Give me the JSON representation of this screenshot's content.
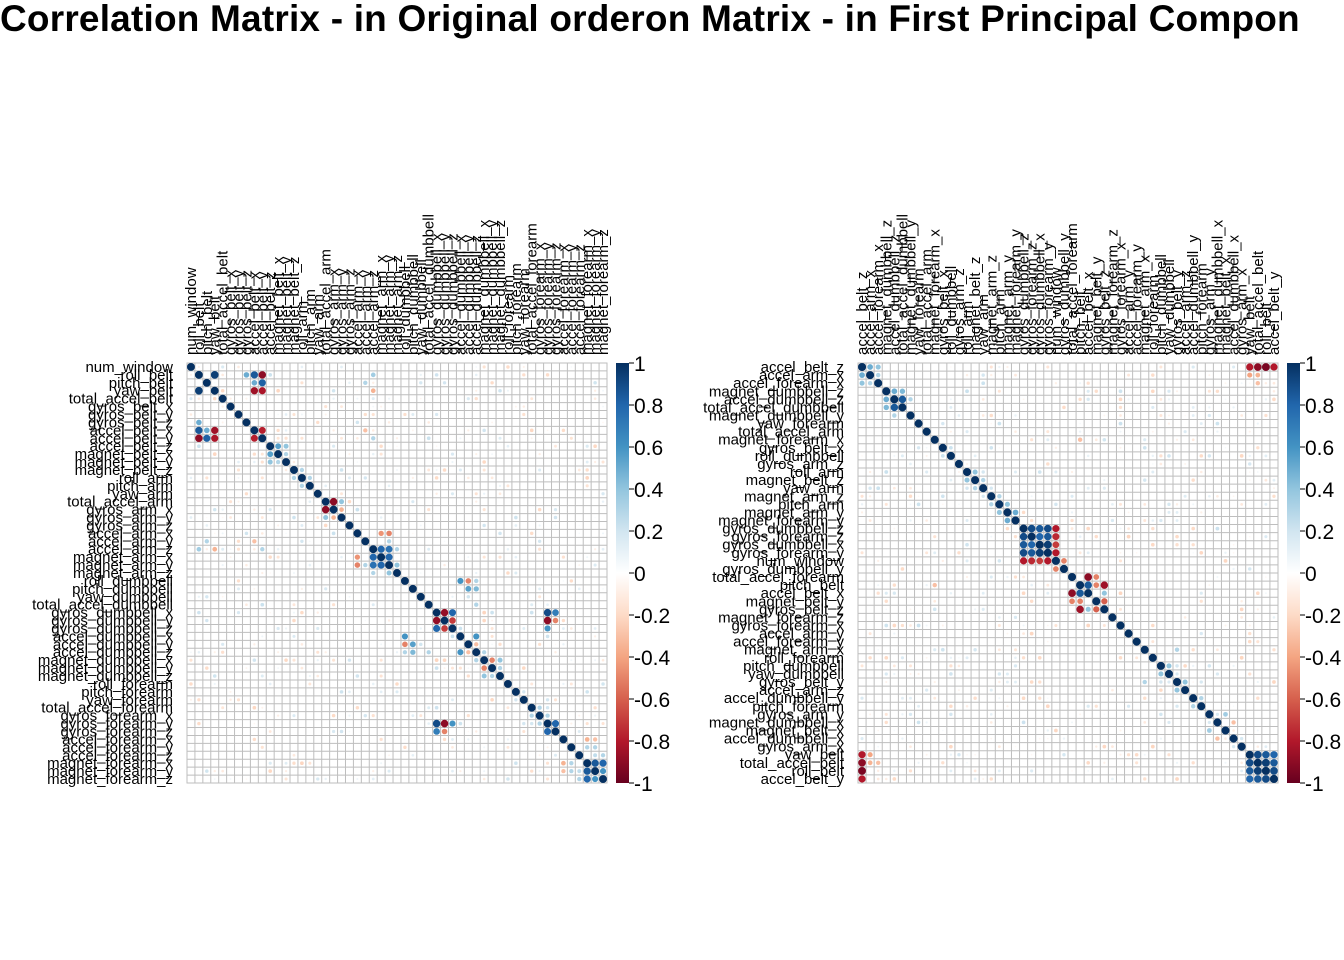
{
  "title": "Correlation Matrix - in Original orderon Matrix - in First Principal Compon",
  "colorbar_ticks": [
    "1",
    "0.8",
    "0.6",
    "0.4",
    "0.2",
    "0",
    "-0.2",
    "-0.4",
    "-0.6",
    "-0.8",
    "-1"
  ],
  "colors": {
    "positive": "#053061",
    "neutral": "#ffffff",
    "negative": "#67001f",
    "grid": "#bebebe"
  },
  "chart_data": [
    {
      "type": "heatmap",
      "title": "Correlation Matrix - in Original order",
      "range": [
        -1,
        1
      ],
      "legend": "right",
      "variables": [
        "num_window",
        "roll_belt",
        "pitch_belt",
        "yaw_belt",
        "total_accel_belt",
        "gyros_belt_x",
        "gyros_belt_y",
        "gyros_belt_z",
        "accel_belt_x",
        "accel_belt_y",
        "accel_belt_z",
        "magnet_belt_x",
        "magnet_belt_y",
        "magnet_belt_z",
        "roll_arm",
        "pitch_arm",
        "yaw_arm",
        "total_accel_arm",
        "gyros_arm_x",
        "gyros_arm_y",
        "gyros_arm_z",
        "accel_arm_x",
        "accel_arm_y",
        "accel_arm_z",
        "magnet_arm_x",
        "magnet_arm_y",
        "magnet_arm_z",
        "roll_dumbbell",
        "pitch_dumbbell",
        "yaw_dumbbell",
        "total_accel_dumbbell",
        "gyros_dumbbell_x",
        "gyros_dumbbell_y",
        "gyros_dumbbell_z",
        "accel_dumbbell_x",
        "accel_dumbbell_y",
        "accel_dumbbell_z",
        "magnet_dumbbell_x",
        "magnet_dumbbell_y",
        "magnet_dumbbell_z",
        "roll_forearm",
        "pitch_forearm",
        "yaw_forearm",
        "total_accel_forearm",
        "gyros_forearm_x",
        "gyros_forearm_y",
        "gyros_forearm_z",
        "accel_forearm_x",
        "accel_forearm_y",
        "accel_forearm_z",
        "magnet_forearm_x",
        "magnet_forearm_y",
        "magnet_forearm_z"
      ],
      "values": [
        [
          2,
          9,
          0.85
        ],
        [
          4,
          9,
          -0.85
        ],
        [
          2,
          10,
          -0.9
        ],
        [
          3,
          10,
          0.82
        ],
        [
          4,
          10,
          -0.82
        ],
        [
          9,
          10,
          -0.78
        ],
        [
          2,
          4,
          0.95
        ],
        [
          2,
          8,
          0.5
        ],
        [
          3,
          9,
          0.5
        ],
        [
          11,
          12,
          0.55
        ],
        [
          11,
          13,
          0.4
        ],
        [
          12,
          13,
          0.3
        ],
        [
          2,
          24,
          0.35
        ],
        [
          3,
          23,
          0.3
        ],
        [
          4,
          24,
          -0.35
        ],
        [
          10,
          24,
          0.3
        ],
        [
          9,
          23,
          -0.3
        ],
        [
          14,
          15,
          0.3
        ],
        [
          15,
          16,
          0.3
        ],
        [
          18,
          19,
          -0.9
        ],
        [
          18,
          20,
          0.4
        ],
        [
          19,
          20,
          -0.35
        ],
        [
          22,
          25,
          -0.45
        ],
        [
          22,
          26,
          -0.5
        ],
        [
          24,
          25,
          0.8
        ],
        [
          24,
          26,
          0.75
        ],
        [
          25,
          26,
          0.8
        ],
        [
          24,
          27,
          0.3
        ],
        [
          26,
          27,
          0.4
        ],
        [
          23,
          26,
          0.3
        ],
        [
          28,
          35,
          0.6
        ],
        [
          28,
          36,
          -0.5
        ],
        [
          29,
          36,
          0.55
        ],
        [
          29,
          37,
          0.45
        ],
        [
          28,
          37,
          0.3
        ],
        [
          35,
          37,
          0.6
        ],
        [
          36,
          37,
          -0.3
        ],
        [
          31,
          37,
          0.3
        ],
        [
          32,
          33,
          -0.88
        ],
        [
          32,
          34,
          0.8
        ],
        [
          33,
          34,
          -0.7
        ],
        [
          32,
          46,
          0.9
        ],
        [
          33,
          46,
          -0.9
        ],
        [
          34,
          46,
          0.6
        ],
        [
          32,
          47,
          0.7
        ],
        [
          33,
          47,
          -0.5
        ],
        [
          37,
          38,
          0.3
        ],
        [
          38,
          39,
          -0.5
        ],
        [
          38,
          40,
          0.4
        ],
        [
          39,
          40,
          0.3
        ],
        [
          44,
          45,
          0.3
        ],
        [
          45,
          46,
          0.3
        ],
        [
          46,
          47,
          0.8
        ],
        [
          48,
          51,
          -0.35
        ],
        [
          48,
          52,
          -0.3
        ],
        [
          49,
          51,
          0.3
        ],
        [
          49,
          52,
          0.3
        ],
        [
          50,
          52,
          0.25
        ],
        [
          51,
          52,
          0.85
        ],
        [
          51,
          53,
          0.8
        ],
        [
          52,
          53,
          0.6
        ],
        [
          50,
          53,
          0.3
        ]
      ]
    },
    {
      "type": "heatmap",
      "title": "Correlation Matrix - in First Principal Component order",
      "range": [
        -1,
        1
      ],
      "legend": "right",
      "variables": [
        "accel_belt_z",
        "accel_arm_x",
        "accel_forearm_x",
        "magnet_dumbbell_z",
        "accel_dumbbell_z",
        "total_accel_dumbbell",
        "magnet_dumbbell_y",
        "yaw_forearm",
        "total_accel_arm",
        "magnet_forearm_x",
        "gyros_belt_x",
        "roll_dumbbell",
        "gyros_arm_z",
        "roll_arm",
        "magnet_belt_z",
        "yaw_arm",
        "magnet_arm_z",
        "pitch_arm",
        "magnet_arm_y",
        "magnet_forearm_y",
        "gyros_dumbbell_z",
        "gyros_forearm_z",
        "gyros_dumbbell_x",
        "gyros_forearm_y",
        "num_window",
        "gyros_dumbbell_y",
        "total_accel_forearm",
        "pitch_belt",
        "accel_belt_x",
        "magnet_belt_y",
        "gyros_belt_z",
        "magnet_forearm_z",
        "gyros_forearm_x",
        "accel_arm_y",
        "accel_forearm_y",
        "magnet_arm_x",
        "roll_forearm",
        "pitch_dumbbell",
        "yaw_dumbbell",
        "gyros_belt_y",
        "accel_arm_z",
        "accel_dumbbell_y",
        "pitch_forearm",
        "gyros_arm_y",
        "magnet_dumbbell_x",
        "magnet_belt_x",
        "accel_dumbbell_x",
        "gyros_arm_x",
        "yaw_belt",
        "total_accel_belt",
        "roll_belt",
        "accel_belt_y"
      ],
      "values": [
        [
          1,
          2,
          0.5
        ],
        [
          1,
          3,
          0.4
        ],
        [
          2,
          3,
          0.3
        ],
        [
          4,
          5,
          0.5
        ],
        [
          4,
          6,
          0.45
        ],
        [
          5,
          6,
          0.85
        ],
        [
          5,
          7,
          0.3
        ],
        [
          1,
          49,
          -0.8
        ],
        [
          1,
          50,
          -0.9
        ],
        [
          1,
          51,
          -0.95
        ],
        [
          1,
          52,
          -0.8
        ],
        [
          2,
          49,
          -0.4
        ],
        [
          2,
          50,
          -0.35
        ],
        [
          3,
          50,
          -0.3
        ],
        [
          21,
          22,
          0.9
        ],
        [
          21,
          23,
          0.85
        ],
        [
          21,
          24,
          0.9
        ],
        [
          22,
          23,
          0.8
        ],
        [
          22,
          24,
          0.85
        ],
        [
          23,
          24,
          0.95
        ],
        [
          25,
          21,
          -0.8
        ],
        [
          25,
          22,
          -0.75
        ],
        [
          25,
          23,
          -0.7
        ],
        [
          25,
          24,
          -0.8
        ],
        [
          25,
          26,
          -0.5
        ],
        [
          27,
          29,
          -0.9
        ],
        [
          27,
          30,
          -0.5
        ],
        [
          28,
          29,
          0.85
        ],
        [
          28,
          30,
          -0.5
        ],
        [
          28,
          31,
          -0.85
        ],
        [
          29,
          31,
          0.4
        ],
        [
          30,
          31,
          -0.6
        ],
        [
          49,
          50,
          0.9
        ],
        [
          49,
          51,
          0.85
        ],
        [
          49,
          52,
          0.8
        ],
        [
          50,
          51,
          0.95
        ],
        [
          50,
          52,
          0.85
        ],
        [
          51,
          52,
          0.9
        ],
        [
          10,
          28,
          -0.3
        ],
        [
          14,
          15,
          0.4
        ],
        [
          15,
          16,
          0.3
        ],
        [
          17,
          18,
          0.3
        ],
        [
          18,
          19,
          0.4
        ],
        [
          19,
          20,
          0.5
        ],
        [
          36,
          40,
          0.3
        ],
        [
          38,
          39,
          0.4
        ],
        [
          40,
          41,
          0.4
        ],
        [
          42,
          43,
          0.3
        ],
        [
          44,
          46,
          0.35
        ],
        [
          45,
          47,
          -0.3
        ]
      ]
    }
  ]
}
